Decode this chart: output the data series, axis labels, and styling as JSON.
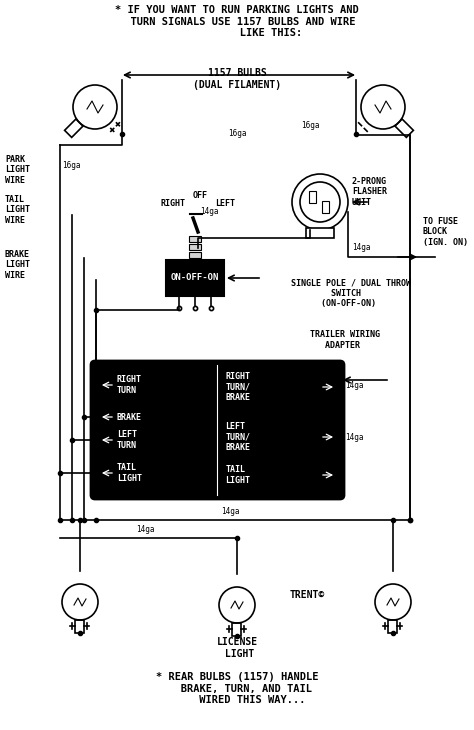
{
  "bg_color": "#ffffff",
  "line_color": "#000000",
  "title_top": "* IF YOU WANT TO RUN PARKING LIGHTS AND\n  TURN SIGNALS USE 1157 BULBS AND WIRE\n           LIKE THIS:",
  "title_bottom": "* REAR BULBS (1157) HANDLE\n   BRAKE, TURN, AND TAIL\n     WIRED THIS WAY...",
  "label_1157": "1157 BULBS",
  "label_dual": "(DUAL FILAMENT)",
  "label_16ga_1": "16ga",
  "label_16ga_2": "16ga",
  "label_16ga_3": "16ga",
  "label_park": "PARK\nLIGHT\nWIRE",
  "label_tail": "TAIL\nLIGHT\nWIRE",
  "label_brake": "BRAKE\nLIGHT\nWIRE",
  "label_off": "OFF",
  "label_right": "RIGHT",
  "label_left": "LEFT",
  "label_14ga_a": "14ga",
  "label_14ga_b": "14ga",
  "label_14ga_c": "14ga",
  "label_14ga_d": "14ga",
  "label_14ga_e": "14ga",
  "label_2prong": "2-PRONG\nFLASHER\nUNIT",
  "label_fuse": "TO FUSE\nBLOCK\n(IGN. ON)",
  "label_switch_name": "SINGLE POLE / DUAL THROW\n        SWITCH\n      (ON-OFF-ON)",
  "label_on_off_on": "ON-OFF-ON",
  "label_trailer": "TRAILER WIRING\n   ADAPTER",
  "label_license": "LICENSE\n LIGHT",
  "label_trent": "TRENT©",
  "adapter_left_1": "RIGHT\nTURN",
  "adapter_left_2": "BRAKE",
  "adapter_left_3": "LEFT\nTURN",
  "adapter_left_4": "TAIL\nLIGHT",
  "adapter_right_1": "RIGHT\nTURN/\nBRAKE",
  "adapter_right_2": "LEFT\nTURN/\nBRAKE",
  "adapter_right_3": "TAIL\nLIGHT",
  "font_title": 7.5,
  "font_label": 7,
  "font_small": 6,
  "font_tiny": 5.5
}
